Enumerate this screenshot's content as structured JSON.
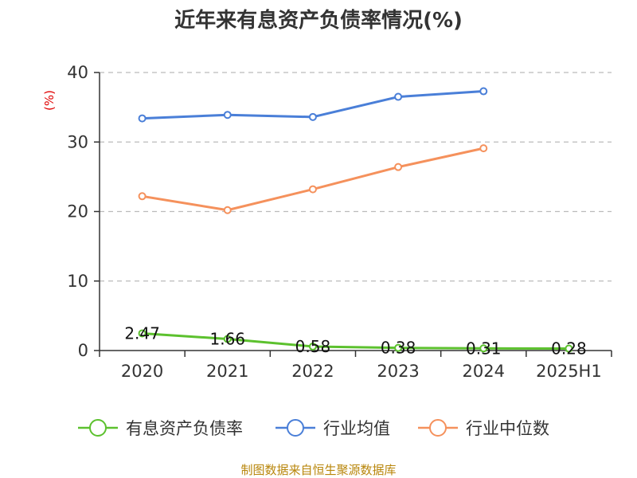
{
  "chart_data": {
    "type": "line",
    "title": "近年来有息资产负债率情况(%)",
    "ylabel": "(%)",
    "xlabel": "",
    "categories": [
      "2020",
      "2021",
      "2022",
      "2023",
      "2024",
      "2025H1"
    ],
    "ylim": [
      0,
      40
    ],
    "yticks": [
      0,
      10,
      20,
      30,
      40
    ],
    "grid": true,
    "legend_position": "bottom",
    "series": [
      {
        "name": "有息资产负债率",
        "color": "#5cc12e",
        "values": [
          2.47,
          1.66,
          0.58,
          0.38,
          0.31,
          0.28
        ],
        "labels": [
          "2.47",
          "1.66",
          "0.58",
          "0.38",
          "0.31",
          "0.28"
        ]
      },
      {
        "name": "行业均值",
        "color": "#4a7fd8",
        "values": [
          33.4,
          33.9,
          33.6,
          36.5,
          37.3,
          null
        ]
      },
      {
        "name": "行业中位数",
        "color": "#f5915c",
        "values": [
          22.2,
          20.2,
          23.2,
          26.4,
          29.1,
          null
        ]
      }
    ],
    "source": "制图数据来自恒生聚源数据库"
  }
}
